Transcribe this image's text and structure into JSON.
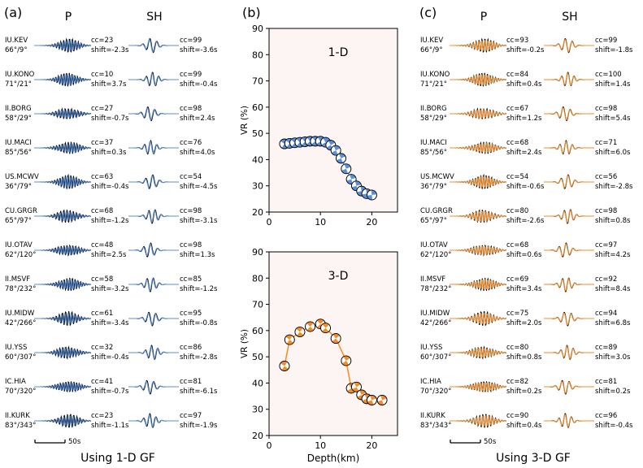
{
  "panels": [
    {
      "letter": "(a)",
      "p_header": "P",
      "sh_header": "SH",
      "footer": "Using 1-D GF",
      "scale_label": "50s",
      "synth_color": "#5b8fd6",
      "stations": [
        {
          "name": "IU.KEV",
          "azm": "66°/9°",
          "p_cc": "cc=23",
          "p_shift": "shift=-2.3s",
          "sh_cc": "cc=99",
          "sh_shift": "shift=-3.6s"
        },
        {
          "name": "IU.KONO",
          "azm": "71°/21°",
          "p_cc": "cc=10",
          "p_shift": "shift=3.7s",
          "sh_cc": "cc=99",
          "sh_shift": "shift=-0.4s"
        },
        {
          "name": "II.BORG",
          "azm": "58°/29°",
          "p_cc": "cc=27",
          "p_shift": "shift=-0.7s",
          "sh_cc": "cc=98",
          "sh_shift": "shift=2.4s"
        },
        {
          "name": "IU.MACI",
          "azm": "85°/56°",
          "p_cc": "cc=37",
          "p_shift": "shift=0.3s",
          "sh_cc": "cc=76",
          "sh_shift": "shift=4.0s"
        },
        {
          "name": "US.MCWV",
          "azm": "36°/79°",
          "p_cc": "cc=63",
          "p_shift": "shift=-0.4s",
          "sh_cc": "cc=54",
          "sh_shift": "shift=-4.5s"
        },
        {
          "name": "CU.GRGR",
          "azm": "65°/97°",
          "p_cc": "cc=68",
          "p_shift": "shift=-1.2s",
          "sh_cc": "cc=98",
          "sh_shift": "shift=-3.1s"
        },
        {
          "name": "IU.OTAV",
          "azm": "62°/120°",
          "p_cc": "cc=48",
          "p_shift": "shift=2.5s",
          "sh_cc": "cc=98",
          "sh_shift": "shift=1.3s"
        },
        {
          "name": "II.MSVF",
          "azm": "78°/232°",
          "p_cc": "cc=58",
          "p_shift": "shift=-3.2s",
          "sh_cc": "cc=85",
          "sh_shift": "shift=-1.2s"
        },
        {
          "name": "IU.MIDW",
          "azm": "42°/266°",
          "p_cc": "cc=61",
          "p_shift": "shift=-3.4s",
          "sh_cc": "cc=95",
          "sh_shift": "shift=-0.8s"
        },
        {
          "name": "IU.YSS",
          "azm": "60°/307°",
          "p_cc": "cc=32",
          "p_shift": "shift=-0.4s",
          "sh_cc": "cc=86",
          "sh_shift": "shift=-2.8s"
        },
        {
          "name": "IC.HIA",
          "azm": "70°/320°",
          "p_cc": "cc=41",
          "p_shift": "shift=-0.7s",
          "sh_cc": "cc=81",
          "sh_shift": "shift=-6.1s"
        },
        {
          "name": "II.KURK",
          "azm": "83°/343°",
          "p_cc": "cc=23",
          "p_shift": "shift=-1.1s",
          "sh_cc": "cc=97",
          "sh_shift": "shift=-1.9s"
        }
      ]
    },
    {
      "letter": "(c)",
      "p_header": "P",
      "sh_header": "SH",
      "footer": "Using 3-D GF",
      "scale_label": "50s",
      "synth_color": "#f28c28",
      "stations": [
        {
          "name": "IU.KEV",
          "azm": "66°/9°",
          "p_cc": "cc=93",
          "p_shift": "shift=-0.2s",
          "sh_cc": "cc=99",
          "sh_shift": "shift=-1.8s"
        },
        {
          "name": "IU.KONO",
          "azm": "71°/21°",
          "p_cc": "cc=84",
          "p_shift": "shift=0.4s",
          "sh_cc": "cc=100",
          "sh_shift": "shift=1.4s"
        },
        {
          "name": "II.BORG",
          "azm": "58°/29°",
          "p_cc": "cc=67",
          "p_shift": "shift=1.2s",
          "sh_cc": "cc=98",
          "sh_shift": "shift=5.4s"
        },
        {
          "name": "IU.MACI",
          "azm": "85°/56°",
          "p_cc": "cc=68",
          "p_shift": "shift=2.4s",
          "sh_cc": "cc=71",
          "sh_shift": "shift=6.0s"
        },
        {
          "name": "US.MCWV",
          "azm": "36°/79°",
          "p_cc": "cc=54",
          "p_shift": "shift=-0.6s",
          "sh_cc": "cc=56",
          "sh_shift": "shift=-2.8s"
        },
        {
          "name": "CU.GRGR",
          "azm": "65°/97°",
          "p_cc": "cc=80",
          "p_shift": "shift=-2.6s",
          "sh_cc": "cc=98",
          "sh_shift": "shift=0.8s"
        },
        {
          "name": "IU.OTAV",
          "azm": "62°/120°",
          "p_cc": "cc=68",
          "p_shift": "shift=0.6s",
          "sh_cc": "cc=97",
          "sh_shift": "shift=4.2s"
        },
        {
          "name": "II.MSVF",
          "azm": "78°/232°",
          "p_cc": "cc=69",
          "p_shift": "shift=3.4s",
          "sh_cc": "cc=92",
          "sh_shift": "shift=8.4s"
        },
        {
          "name": "IU.MIDW",
          "azm": "42°/266°",
          "p_cc": "cc=75",
          "p_shift": "shift=2.0s",
          "sh_cc": "cc=94",
          "sh_shift": "shift=6.8s"
        },
        {
          "name": "IU.YSS",
          "azm": "60°/307°",
          "p_cc": "cc=80",
          "p_shift": "shift=0.8s",
          "sh_cc": "cc=89",
          "sh_shift": "shift=3.0s"
        },
        {
          "name": "IC.HIA",
          "azm": "70°/320°",
          "p_cc": "cc=82",
          "p_shift": "shift=0.2s",
          "sh_cc": "cc=81",
          "sh_shift": "shift=0.2s"
        },
        {
          "name": "II.KURK",
          "azm": "83°/343°",
          "p_cc": "cc=90",
          "p_shift": "shift=0.4s",
          "sh_cc": "cc=96",
          "sh_shift": "shift=-0.4s"
        }
      ]
    }
  ],
  "chart_data": [
    {
      "type": "line",
      "panel_letter": "(b)",
      "title": "1-D",
      "xlabel": "",
      "ylabel": "VR (%)",
      "xlim": [
        0,
        25
      ],
      "ylim": [
        20,
        90
      ],
      "xticks": [
        0,
        10,
        20
      ],
      "yticks": [
        20,
        30,
        40,
        50,
        60,
        70,
        80,
        90
      ],
      "grid": false,
      "color": "#5b8fd6",
      "x": [
        3,
        4,
        5,
        6,
        7,
        8,
        9,
        10,
        11,
        12,
        13,
        14,
        15,
        16,
        17,
        18,
        19,
        20
      ],
      "y": [
        46.0,
        46.2,
        46.4,
        46.6,
        46.8,
        47.0,
        47.0,
        47.0,
        46.6,
        45.5,
        43.5,
        40.5,
        36.5,
        32.5,
        30.0,
        28.0,
        27.0,
        26.5
      ]
    },
    {
      "type": "line",
      "panel_letter": "",
      "title": "3-D",
      "xlabel": "Depth(km)",
      "ylabel": "VR (%)",
      "xlim": [
        0,
        25
      ],
      "ylim": [
        20,
        90
      ],
      "xticks": [
        0,
        10,
        20
      ],
      "yticks": [
        20,
        30,
        40,
        50,
        60,
        70,
        80,
        90
      ],
      "grid": false,
      "color": "#f28c28",
      "x": [
        3,
        4,
        6,
        8,
        10,
        11,
        13,
        15,
        16,
        17,
        18,
        19,
        20,
        22
      ],
      "y": [
        46.5,
        56.5,
        59.5,
        61.5,
        62.5,
        61.0,
        57.0,
        48.5,
        38.0,
        38.5,
        35.5,
        34.0,
        33.5,
        33.5
      ]
    }
  ]
}
